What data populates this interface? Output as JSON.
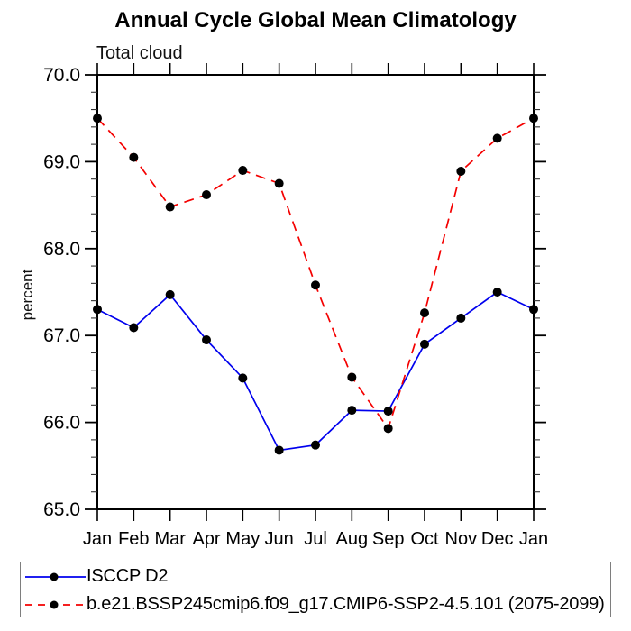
{
  "chart_data": {
    "type": "line",
    "title": "Annual Cycle Global Mean Climatology",
    "subtitle": "Total cloud",
    "ylabel": "percent",
    "xlabel": "",
    "categories": [
      "Jan",
      "Feb",
      "Mar",
      "Apr",
      "May",
      "Jun",
      "Jul",
      "Aug",
      "Sep",
      "Oct",
      "Nov",
      "Dec",
      "Jan"
    ],
    "series": [
      {
        "name": "ISCCP D2",
        "color": "#0000ee",
        "line_style": "solid",
        "marker": "circle",
        "marker_color": "#000000",
        "values": [
          67.3,
          67.09,
          67.47,
          66.95,
          66.51,
          65.68,
          65.74,
          66.14,
          66.13,
          66.9,
          67.2,
          67.5,
          67.3
        ]
      },
      {
        "name": "b.e21.BSSP245cmip6.f09_g17.CMIP6-SSP2-4.5.101 (2075-2099)",
        "color": "#f40000",
        "line_style": "dashed",
        "marker": "circle",
        "marker_color": "#000000",
        "values": [
          69.5,
          69.05,
          68.48,
          68.62,
          68.9,
          68.75,
          67.58,
          66.52,
          65.93,
          67.26,
          68.89,
          69.27,
          69.5
        ]
      }
    ],
    "ylim": [
      65.0,
      70.0
    ],
    "ytick_values": [
      65.0,
      66.0,
      67.0,
      68.0,
      69.0,
      70.0
    ],
    "ytick_labels": [
      "65.0",
      "66.0",
      "67.0",
      "68.0",
      "69.0",
      "70.0"
    ],
    "ytick_minor_interval": 0.2,
    "grid": false,
    "legend_position": "bottom",
    "axis_color": "#000000",
    "text_color": "#000000"
  }
}
